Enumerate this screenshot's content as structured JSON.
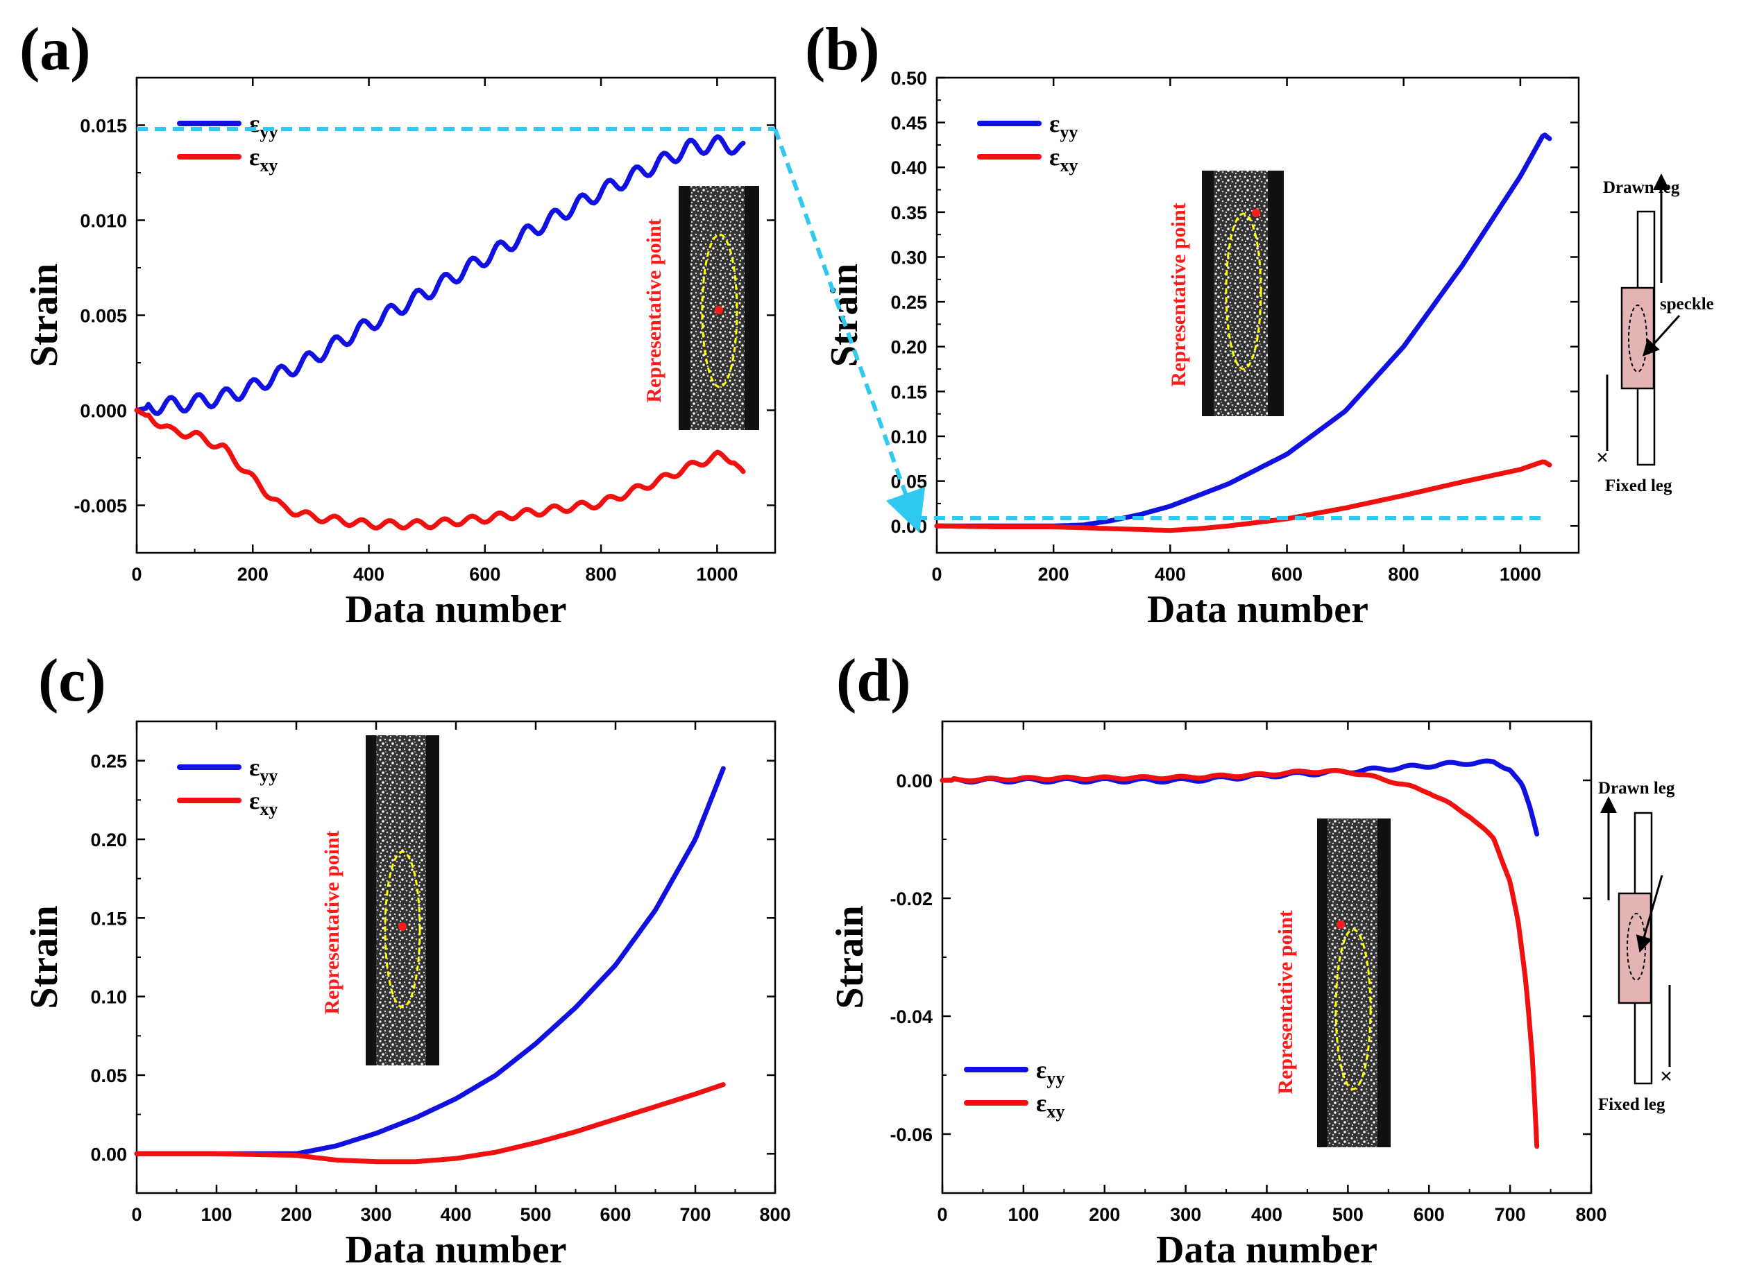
{
  "chart_data": [
    {
      "type": "line",
      "panel": "(a)",
      "xlabel": "Data number",
      "ylabel": "Strain",
      "xlim": [
        0,
        1100
      ],
      "ylim": [
        -0.0075,
        0.0175
      ],
      "xticks": [
        0,
        200,
        400,
        600,
        800,
        1000
      ],
      "xtick_labels": [
        "0",
        "200",
        "400",
        "600",
        "800",
        "1000"
      ],
      "yticks": [
        -0.005,
        0.0,
        0.005,
        0.01,
        0.015
      ],
      "ytick_labels": [
        "-0.005",
        "0.000",
        "0.005",
        "0.010",
        "0.015"
      ],
      "legend": {
        "position": "top-left",
        "entries": [
          {
            "main": "ε",
            "sub": "yy"
          },
          {
            "main": "ε",
            "sub": "xy"
          }
        ]
      },
      "inset_label": "Representative point",
      "series": [
        {
          "name": "εyy",
          "color": "#1010e0",
          "wiggle": 0.0004,
          "x": [
            0,
            30,
            100,
            150,
            200,
            300,
            400,
            500,
            600,
            700,
            800,
            900,
            950,
            1000,
            1030,
            1045
          ],
          "y": [
            0.0,
            0.0002,
            0.0004,
            0.0007,
            0.0012,
            0.0027,
            0.0045,
            0.0062,
            0.008,
            0.0098,
            0.0115,
            0.013,
            0.0138,
            0.014,
            0.0139,
            0.0137
          ]
        },
        {
          "name": "εxy",
          "color": "#f01010",
          "wiggle": 0.0002,
          "x": [
            0,
            30,
            60,
            100,
            150,
            200,
            250,
            300,
            400,
            500,
            600,
            700,
            800,
            900,
            950,
            1000,
            1030,
            1045
          ],
          "y": [
            0.0,
            -0.0005,
            -0.0011,
            -0.0013,
            -0.002,
            -0.0036,
            -0.0051,
            -0.0056,
            -0.006,
            -0.006,
            -0.0057,
            -0.0053,
            -0.0049,
            -0.0037,
            -0.003,
            -0.0024,
            -0.0026,
            -0.0034
          ]
        }
      ]
    },
    {
      "type": "line",
      "panel": "(b)",
      "xlabel": "Data number",
      "ylabel": "Strain",
      "xlim": [
        0,
        1100
      ],
      "ylim": [
        -0.03,
        0.5
      ],
      "xticks": [
        0,
        200,
        400,
        600,
        800,
        1000
      ],
      "xtick_labels": [
        "0",
        "200",
        "400",
        "600",
        "800",
        "1000"
      ],
      "yticks": [
        0.0,
        0.05,
        0.1,
        0.15,
        0.2,
        0.25,
        0.3,
        0.35,
        0.4,
        0.45,
        0.5
      ],
      "ytick_labels": [
        "0.00",
        "0.05",
        "0.10",
        "0.15",
        "0.20",
        "0.25",
        "0.30",
        "0.35",
        "0.40",
        "0.45",
        "0.50"
      ],
      "legend": {
        "position": "top-left",
        "entries": [
          {
            "main": "ε",
            "sub": "yy"
          },
          {
            "main": "ε",
            "sub": "xy"
          }
        ]
      },
      "inset_label": "Representative point",
      "series": [
        {
          "name": "εyy",
          "color": "#1010e0",
          "wiggle": 0,
          "x": [
            0,
            100,
            200,
            250,
            300,
            350,
            400,
            500,
            600,
            700,
            800,
            900,
            1000,
            1040,
            1050
          ],
          "y": [
            0.0,
            0.0,
            0.0,
            0.001,
            0.006,
            0.013,
            0.022,
            0.047,
            0.08,
            0.128,
            0.2,
            0.29,
            0.39,
            0.437,
            0.432
          ]
        },
        {
          "name": "εxy",
          "color": "#f01010",
          "wiggle": 0,
          "x": [
            0,
            100,
            200,
            300,
            350,
            400,
            450,
            500,
            600,
            700,
            800,
            900,
            1000,
            1040,
            1050
          ],
          "y": [
            0.0,
            -0.001,
            -0.001,
            -0.003,
            -0.004,
            -0.005,
            -0.003,
            0.0,
            0.008,
            0.02,
            0.034,
            0.049,
            0.063,
            0.072,
            0.068
          ]
        }
      ]
    },
    {
      "type": "line",
      "panel": "(c)",
      "xlabel": "Data number",
      "ylabel": "Strain",
      "xlim": [
        0,
        800
      ],
      "ylim": [
        -0.025,
        0.275
      ],
      "xticks": [
        0,
        100,
        200,
        300,
        400,
        500,
        600,
        700,
        800
      ],
      "xtick_labels": [
        "0",
        "100",
        "200",
        "300",
        "400",
        "500",
        "600",
        "700",
        "800"
      ],
      "yticks": [
        0.0,
        0.05,
        0.1,
        0.15,
        0.2,
        0.25
      ],
      "ytick_labels": [
        "0.00",
        "0.05",
        "0.10",
        "0.15",
        "0.20",
        "0.25"
      ],
      "legend": {
        "position": "top-left",
        "entries": [
          {
            "main": "ε",
            "sub": "yy"
          },
          {
            "main": "ε",
            "sub": "xy"
          }
        ]
      },
      "inset_label": "Representative point",
      "series": [
        {
          "name": "εyy",
          "color": "#1010e0",
          "wiggle": 0,
          "x": [
            0,
            100,
            200,
            250,
            300,
            350,
            400,
            450,
            500,
            550,
            600,
            650,
            700,
            735
          ],
          "y": [
            0.0,
            0.0,
            0.0,
            0.005,
            0.013,
            0.023,
            0.035,
            0.05,
            0.07,
            0.093,
            0.12,
            0.155,
            0.2,
            0.245
          ]
        },
        {
          "name": "εxy",
          "color": "#f01010",
          "wiggle": 0,
          "x": [
            0,
            100,
            200,
            250,
            300,
            350,
            400,
            450,
            500,
            550,
            600,
            650,
            700,
            735
          ],
          "y": [
            0.0,
            0.0,
            -0.001,
            -0.004,
            -0.005,
            -0.005,
            -0.003,
            0.001,
            0.007,
            0.014,
            0.022,
            0.03,
            0.038,
            0.044
          ]
        }
      ]
    },
    {
      "type": "line",
      "panel": "(d)",
      "xlabel": "Data number",
      "ylabel": "Strain",
      "xlim": [
        0,
        800
      ],
      "ylim": [
        -0.07,
        0.01
      ],
      "xticks": [
        0,
        100,
        200,
        300,
        400,
        500,
        600,
        700,
        800
      ],
      "xtick_labels": [
        "0",
        "100",
        "200",
        "300",
        "400",
        "500",
        "600",
        "700",
        "800"
      ],
      "yticks": [
        -0.06,
        -0.04,
        -0.02,
        0.0
      ],
      "ytick_labels": [
        "-0.06",
        "-0.04",
        "-0.02",
        "0.00"
      ],
      "legend": {
        "position": "bottom-left",
        "entries": [
          {
            "main": "ε",
            "sub": "yy"
          },
          {
            "main": "ε",
            "sub": "xy"
          }
        ]
      },
      "inset_label": "Representative point",
      "series": [
        {
          "name": "εyy",
          "color": "#1010e0",
          "wiggle": 0.0003,
          "x": [
            0,
            100,
            200,
            300,
            400,
            500,
            600,
            650,
            680,
            700,
            715,
            725,
            733
          ],
          "y": [
            0.0,
            0.0,
            0.0,
            0.0,
            0.0008,
            0.0015,
            0.0025,
            0.003,
            0.003,
            0.002,
            -0.001,
            -0.005,
            -0.009
          ]
        },
        {
          "name": "εxy",
          "color": "#f01010",
          "wiggle": 0.0002,
          "x": [
            0,
            100,
            200,
            300,
            400,
            450,
            500,
            550,
            600,
            650,
            680,
            700,
            710,
            720,
            728,
            733
          ],
          "y": [
            0.0,
            0.0003,
            0.0004,
            0.0005,
            0.001,
            0.0015,
            0.0015,
            0.0,
            -0.002,
            -0.006,
            -0.01,
            -0.017,
            -0.024,
            -0.035,
            -0.048,
            -0.062
          ]
        }
      ]
    }
  ],
  "panel_labels": [
    "(a)",
    "(b)",
    "(c)",
    "(d)"
  ],
  "diagrams": [
    {
      "drawn_leg": "Drawn leg",
      "fixed_leg": "Fixed leg",
      "cross": "×",
      "speckle": "speckle"
    },
    {
      "drawn_leg": "Drawn leg",
      "fixed_leg": "Fixed leg",
      "cross": "×"
    }
  ]
}
